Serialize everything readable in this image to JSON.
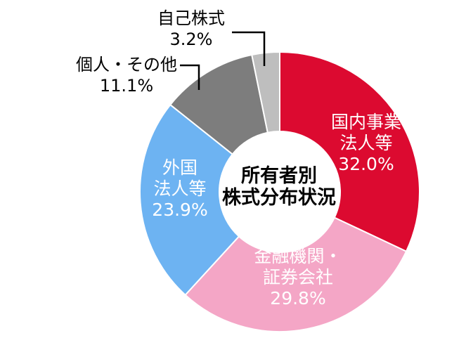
{
  "chart_data": {
    "type": "pie",
    "donut": true,
    "title": "所有者別株式分布状況",
    "unit": "%",
    "direction": "clockwise",
    "start_angle": "12-o'clock",
    "background_color": "#FFFFFF",
    "separator_color": "#FFFFFF",
    "center_label": "所有者別\n株式分布状況",
    "slices": [
      {
        "name": "国内事業法人等",
        "value": 32.0,
        "color": "#DC0A30",
        "label": "国内事業\n法人等\n32.0%",
        "label_placement": "inside"
      },
      {
        "name": "金融機関・証券会社",
        "value": 29.8,
        "color": "#F4A6C6",
        "label": "金融機関・\n証券会社\n29.8%",
        "label_placement": "inside"
      },
      {
        "name": "外国法人等",
        "value": 23.9,
        "color": "#6DB3F2",
        "label": "外国\n法人等\n23.9%",
        "label_placement": "inside"
      },
      {
        "name": "個人・その他",
        "value": 11.1,
        "color": "#7D7D7D",
        "label": "個人・その他\n11.1%",
        "label_placement": "outside"
      },
      {
        "name": "自己株式",
        "value": 3.2,
        "color": "#BEBEBE",
        "label": "自己株式\n3.2%",
        "label_placement": "outside"
      }
    ]
  }
}
